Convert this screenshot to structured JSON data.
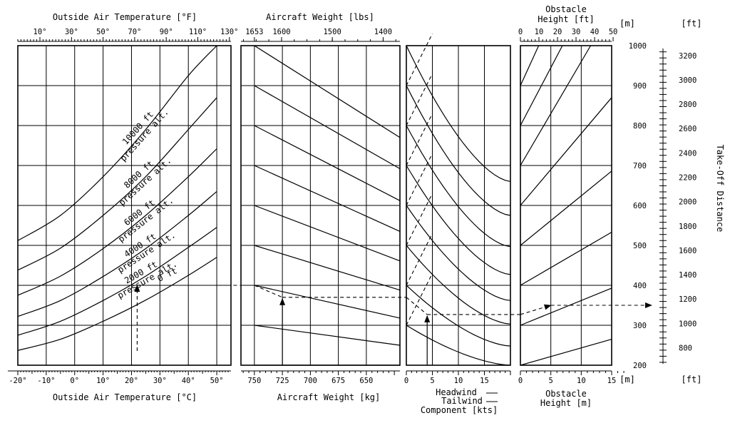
{
  "chart_data": [
    {
      "type": "line",
      "panel": "temperature",
      "title_top": "Outside Air Temperature [°F]",
      "title_bottom": "Outside Air Temperature [°C]",
      "ticks_top": [
        "10°",
        "30°",
        "50°",
        "70°",
        "90°",
        "110°",
        "130°"
      ],
      "ticks_bottom": [
        "-20°",
        "-10°",
        "0°",
        "10°",
        "20°",
        "30°",
        "40°",
        "50°"
      ],
      "xlim_c": [
        -20,
        55
      ],
      "series": [
        {
          "name": "0 ft",
          "label_line2": "",
          "x": [
            -20,
            -5,
            10,
            25,
            40,
            50
          ],
          "y": [
            237,
            265,
            310,
            363,
            425,
            470
          ]
        },
        {
          "name": "2000 ft",
          "label_line2": "pressure alt.",
          "x": [
            -20,
            -5,
            10,
            25,
            40,
            50
          ],
          "y": [
            275,
            310,
            362,
            423,
            495,
            545
          ]
        },
        {
          "name": "4000 ft",
          "label_line2": "pressure alt.",
          "x": [
            -20,
            -5,
            10,
            25,
            40,
            50
          ],
          "y": [
            322,
            362,
            422,
            492,
            575,
            635
          ]
        },
        {
          "name": "6000 ft",
          "label_line2": "pressure alt.",
          "x": [
            -20,
            -5,
            10,
            25,
            40,
            50
          ],
          "y": [
            375,
            423,
            492,
            575,
            672,
            742
          ]
        },
        {
          "name": "8000 ft",
          "label_line2": "pressure alt.",
          "x": [
            -20,
            -5,
            10,
            25,
            40,
            50
          ],
          "y": [
            438,
            493,
            575,
            672,
            790,
            870
          ]
        },
        {
          "name": "10000 ft",
          "label_line2": "pressure alt.",
          "x": [
            -20,
            -5,
            10,
            25,
            40,
            50
          ],
          "y": [
            512,
            575,
            672,
            790,
            925,
            1000
          ]
        }
      ],
      "example_path": {
        "x": 22,
        "y": 400
      }
    },
    {
      "type": "line",
      "panel": "weight",
      "title_top": "Aircraft Weight [lbs]",
      "title_bottom": "Aircraft Weight [kg]",
      "ticks_top": [
        "1653",
        "1600",
        "1500",
        "1400"
      ],
      "ticks_top_values_kg": [
        750,
        725.7,
        680.4,
        635
      ],
      "ticks_bottom": [
        "750",
        "725",
        "700",
        "675",
        "650"
      ],
      "xlim_kg": [
        762,
        620
      ],
      "series_start_y": [
        200,
        300,
        400,
        500,
        600,
        700,
        800,
        900,
        1000
      ],
      "series_end_y": [
        200,
        250,
        318,
        388,
        461,
        535,
        612,
        692,
        770
      ],
      "example_path": [
        {
          "x": 750,
          "y": 400
        },
        {
          "x": 725,
          "y": 370
        }
      ]
    },
    {
      "type": "line",
      "panel": "wind",
      "title_bottom_lines": [
        "Headwind",
        "Tailwind",
        "Component [kts]"
      ],
      "ticks_bottom": [
        "0",
        "5",
        "10",
        "15"
      ],
      "xlim_kts": [
        0,
        20
      ],
      "headwind_start_y": [
        300,
        400,
        500,
        600,
        700,
        800,
        900,
        1000
      ],
      "headwind_end_y": [
        200,
        248,
        303,
        362,
        427,
        497,
        575,
        660
      ],
      "tailwind_start_y": [
        300,
        400,
        500,
        600,
        700,
        800,
        900
      ],
      "tailwind_end_x": 5,
      "tailwind_rise": 130,
      "example_path": [
        {
          "x": 0,
          "y": 370
        },
        {
          "x": 4,
          "y": 327
        }
      ]
    },
    {
      "type": "line",
      "panel": "obstacle",
      "title_top": "Obstacle Height [ft]",
      "title_bottom": "Obstacle Height [m]",
      "ticks_top": [
        "0",
        "10",
        "20",
        "30",
        "40",
        "50"
      ],
      "ticks_bottom": [
        "0",
        "5",
        "10",
        "15"
      ],
      "xlim_m": [
        0,
        15
      ],
      "series_start_y": [
        200,
        300,
        400,
        500,
        600,
        700,
        800,
        900
      ],
      "series_end_y": [
        265,
        393,
        533,
        686,
        870,
        1090,
        1235,
        1400
      ],
      "example_path": [
        {
          "x": 0,
          "y": 327
        },
        {
          "x": 5,
          "y": 350
        }
      ]
    },
    {
      "type": "line",
      "panel": "axis",
      "unit_m": "[m]",
      "unit_ft": "[ft]",
      "ylabel": "Take-Off Distance",
      "ylim_m": [
        200,
        1000
      ],
      "ticks_m": [
        "200",
        "300",
        "400",
        "500",
        "600",
        "700",
        "800",
        "900",
        "1000"
      ],
      "ticks_ft": [
        "800",
        "1000",
        "1200",
        "1400",
        "1600",
        "1800",
        "2000",
        "2200",
        "2400",
        "2600",
        "2800",
        "3000",
        "3200"
      ],
      "result_m": 350
    }
  ]
}
